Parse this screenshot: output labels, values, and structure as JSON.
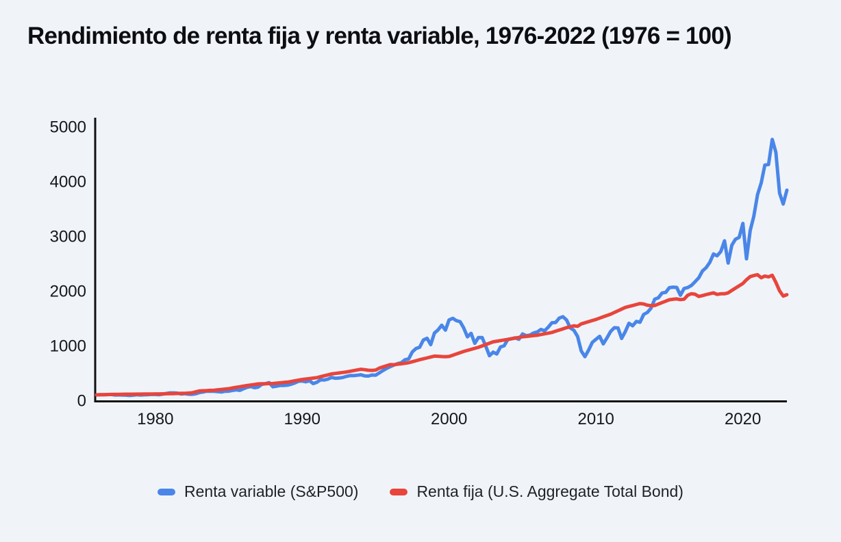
{
  "title": "Rendimiento de renta fija y renta variable, 1976-2022 (1976 = 100)",
  "colors": {
    "background": "#f0f4f9",
    "axis": "#111111",
    "tick_text": "#15171c",
    "equity_blue": "#4a86e8",
    "bond_red": "#e8453c"
  },
  "chart_data": {
    "type": "line",
    "title": "Rendimiento de renta fija y renta variable, 1976-2022 (1976 = 100)",
    "xlabel": "",
    "ylabel": "",
    "xlim": [
      1976,
      2023
    ],
    "ylim": [
      0,
      5000
    ],
    "x_ticks": [
      1980,
      1990,
      2000,
      2010,
      2020
    ],
    "y_ticks": [
      0,
      1000,
      2000,
      3000,
      4000,
      5000
    ],
    "grid": false,
    "legend_position": "bottom",
    "x_start": 1976,
    "x_step": 0.25,
    "x_unit": "year (quarterly points)",
    "index_note": "1976 = 100",
    "series": [
      {
        "name": "Renta variable (S&P500)",
        "color": "#4a86e8",
        "values": [
          100,
          102,
          104,
          105,
          107,
          98,
          100,
          97,
          95,
          89,
          95,
          103,
          96,
          101,
          103,
          109,
          108,
          102,
          114,
          125,
          136,
          136,
          131,
          116,
          123,
          112,
          110,
          120,
          141,
          153,
          168,
          166,
          165,
          159,
          153,
          166,
          167,
          181,
          192,
          182,
          211,
          239,
          251,
          231,
          242,
          292,
          304,
          322,
          247,
          259,
          273,
          272,
          278,
          295,
          318,
          349,
          353,
          339,
          358,
          306,
          330,
          375,
          371,
          388,
          417,
          404,
          408,
          418,
          436,
          452,
          451,
          459,
          467,
          446,
          444,
          463,
          459,
          501,
          545,
          584,
          616,
          646,
          671,
          687,
          741,
          757,
          885,
          947,
          970,
          1102,
          1134,
          1017,
          1229,
          1286,
          1373,
          1283,
          1469,
          1499,
          1455,
          1437,
          1320,
          1160,
          1224,
          1041,
          1148,
          1147,
          990,
          815,
          880,
          848,
          975,
          996,
          1112,
          1126,
          1141,
          1115,
          1212,
          1181,
          1191,
          1229,
          1248,
          1295,
          1270,
          1336,
          1418,
          1421,
          1503,
          1527,
          1468,
          1323,
          1280,
          1166,
          903,
          798,
          919,
          1057,
          1115,
          1169,
          1031,
          1141,
          1258,
          1326,
          1321,
          1131,
          1258,
          1408,
          1362,
          1441,
          1426,
          1569,
          1606,
          1682,
          1848,
          1872,
          1960,
          1972,
          2059,
          2068,
          2063,
          1920,
          2044,
          2060,
          2099,
          2168,
          2239,
          2363,
          2423,
          2519,
          2674,
          2641,
          2718,
          2914,
          2507,
          2834,
          2942,
          2977,
          3231,
          2585,
          3100,
          3363,
          3756,
          3973,
          4298,
          4308,
          4766,
          4530,
          3785,
          3586,
          3839
        ]
      },
      {
        "name": "Renta fija (U.S. Aggregate Total Bond)",
        "color": "#e8453c",
        "values": [
          100,
          102,
          104,
          106,
          108,
          109,
          110,
          111,
          112,
          113,
          113,
          114,
          114,
          115,
          116,
          116,
          117,
          118,
          119,
          120,
          121,
          123,
          125,
          127,
          129,
          132,
          138,
          155,
          171,
          175,
          178,
          182,
          185,
          192,
          199,
          206,
          213,
          225,
          237,
          248,
          260,
          270,
          280,
          290,
          300,
          302,
          304,
          306,
          308,
          314,
          320,
          327,
          333,
          345,
          357,
          369,
          381,
          389,
          398,
          406,
          415,
          432,
          449,
          465,
          482,
          491,
          500,
          509,
          518,
          530,
          543,
          555,
          568,
          560,
          550,
          548,
          552,
          589,
          611,
          632,
          654,
          650,
          660,
          668,
          677,
          688,
          705,
          724,
          743,
          759,
          775,
          791,
          808,
          805,
          800,
          798,
          801,
          824,
          847,
          870,
          894,
          913,
          931,
          950,
          969,
          994,
          1019,
          1044,
          1069,
          1080,
          1091,
          1102,
          1113,
          1125,
          1137,
          1149,
          1161,
          1168,
          1175,
          1182,
          1189,
          1202,
          1215,
          1227,
          1240,
          1262,
          1284,
          1305,
          1327,
          1344,
          1361,
          1352,
          1396,
          1416,
          1437,
          1457,
          1478,
          1502,
          1526,
          1550,
          1574,
          1605,
          1636,
          1666,
          1697,
          1715,
          1733,
          1750,
          1768,
          1760,
          1738,
          1730,
          1733,
          1759,
          1785,
          1811,
          1837,
          1846,
          1852,
          1840,
          1848,
          1920,
          1948,
          1938,
          1898,
          1914,
          1931,
          1947,
          1964,
          1935,
          1946,
          1946,
          1964,
          2007,
          2050,
          2093,
          2135,
          2202,
          2260,
          2280,
          2295,
          2240,
          2270,
          2255,
          2285,
          2155,
          2000,
          1905,
          1930
        ]
      }
    ]
  },
  "legend": {
    "items": [
      {
        "label": "Renta variable (S&P500)",
        "color": "#4a86e8"
      },
      {
        "label": "Renta fija (U.S. Aggregate Total Bond)",
        "color": "#e8453c"
      }
    ]
  }
}
